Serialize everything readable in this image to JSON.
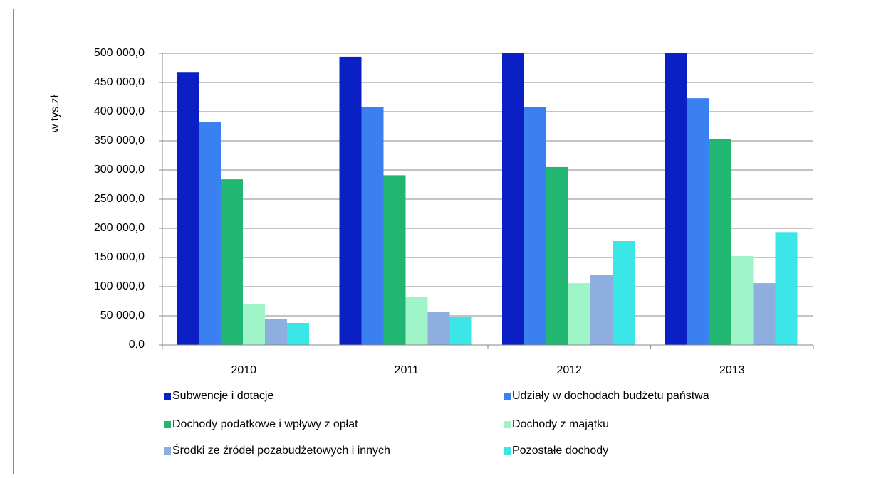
{
  "chart_data": {
    "type": "bar",
    "y_label": "w  tys.zł",
    "categories": [
      "2010",
      "2011",
      "2012",
      "2013"
    ],
    "series": [
      {
        "name": "Subwencje i dotacje",
        "color": "#0a1fc4",
        "values": [
          468000,
          494000,
          500000,
          500000
        ]
      },
      {
        "name": "Udziały w dochodach budżetu państwa",
        "color": "#3a80f0",
        "values": [
          382000,
          408500,
          407500,
          423000
        ]
      },
      {
        "name": "Dochody podatkowe i wpływy z opłat",
        "color": "#22b673",
        "values": [
          284000,
          291000,
          305000,
          353500
        ]
      },
      {
        "name": "Dochody z majątku",
        "color": "#a0f5c8",
        "values": [
          69500,
          81700,
          106000,
          152500
        ]
      },
      {
        "name": "Środki ze źródeł pozabudżetowych i innych",
        "color": "#8eaee0",
        "values": [
          43900,
          57300,
          119500,
          106000
        ]
      },
      {
        "name": "Pozostałe dochody",
        "color": "#3ae6e6",
        "values": [
          37800,
          47600,
          178000,
          193500
        ]
      }
    ],
    "ylim": [
      0,
      500000
    ],
    "yticks": [
      {
        "value": 0,
        "label": "0,0"
      },
      {
        "value": 50000,
        "label": "50 000,0"
      },
      {
        "value": 100000,
        "label": "100 000,0"
      },
      {
        "value": 150000,
        "label": "150 000,0"
      },
      {
        "value": 200000,
        "label": "200 000,0"
      },
      {
        "value": 250000,
        "label": "250 000,0"
      },
      {
        "value": 300000,
        "label": "300 000,0"
      },
      {
        "value": 350000,
        "label": "350 000,0"
      },
      {
        "value": 400000,
        "label": "400 000,0"
      },
      {
        "value": 450000,
        "label": "450 000,0"
      },
      {
        "value": 500000,
        "label": "500 000,0"
      }
    ],
    "grid": true
  }
}
